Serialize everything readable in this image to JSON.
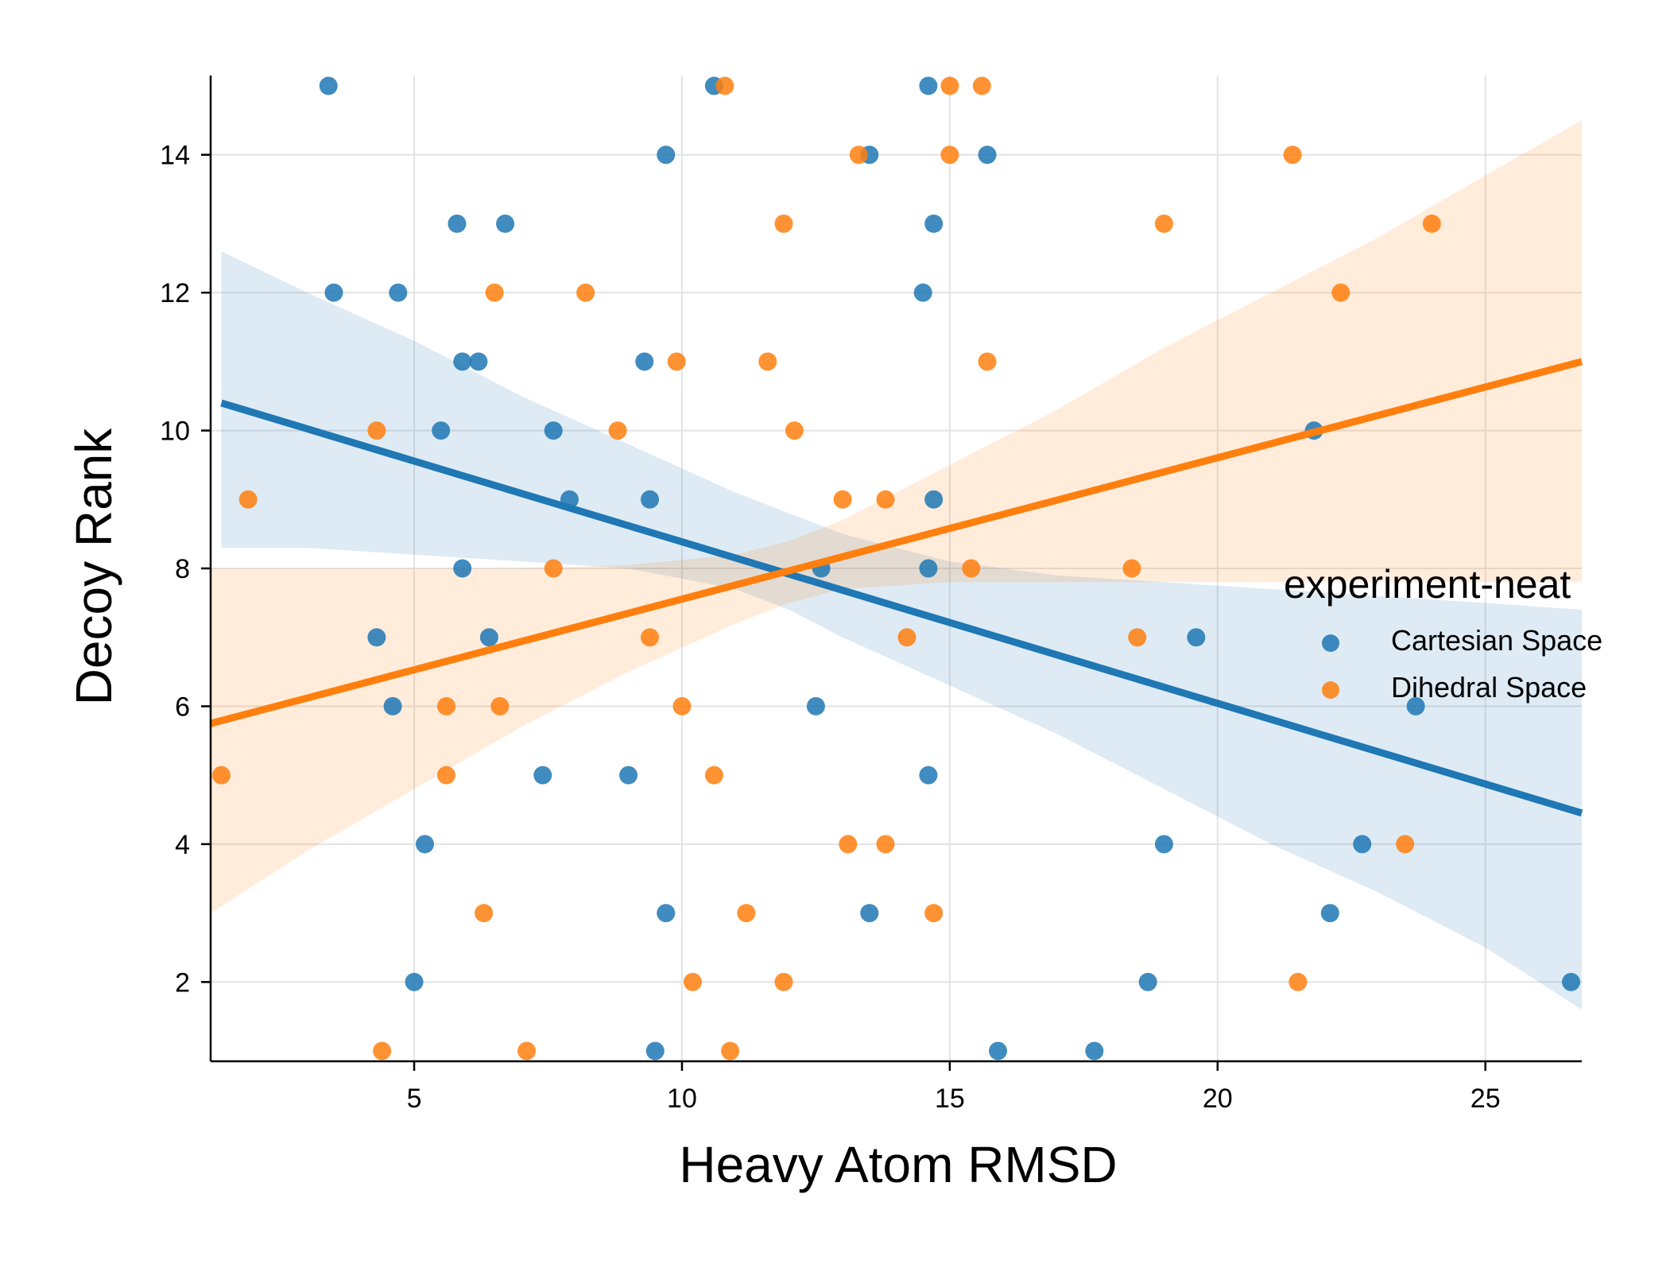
{
  "chart_data": {
    "type": "scatter",
    "title": "",
    "xlabel": "Heavy Atom RMSD",
    "ylabel": "Decoy Rank",
    "xlim": [
      1.2,
      26.8
    ],
    "ylim": [
      0.85,
      15.15
    ],
    "xticks": [
      5,
      10,
      15,
      20,
      25
    ],
    "yticks": [
      2,
      4,
      6,
      8,
      10,
      12,
      14
    ],
    "grid": true,
    "legend": {
      "title": "experiment-neat",
      "position": "right"
    },
    "series": [
      {
        "name": "Cartesian Space",
        "color": "#1f77b4",
        "points": [
          [
            3.4,
            15
          ],
          [
            10.6,
            15
          ],
          [
            14.6,
            15
          ],
          [
            9.7,
            14
          ],
          [
            13.5,
            14
          ],
          [
            15.7,
            14
          ],
          [
            5.8,
            13
          ],
          [
            6.7,
            13
          ],
          [
            14.7,
            13
          ],
          [
            3.5,
            12
          ],
          [
            4.7,
            12
          ],
          [
            14.5,
            12
          ],
          [
            5.9,
            11
          ],
          [
            6.2,
            11
          ],
          [
            9.3,
            11
          ],
          [
            5.5,
            10
          ],
          [
            7.6,
            10
          ],
          [
            21.8,
            10
          ],
          [
            7.9,
            9
          ],
          [
            9.4,
            9
          ],
          [
            14.7,
            9
          ],
          [
            5.9,
            8
          ],
          [
            12.6,
            8
          ],
          [
            14.6,
            8
          ],
          [
            4.3,
            7
          ],
          [
            6.4,
            7
          ],
          [
            19.6,
            7
          ],
          [
            4.6,
            6
          ],
          [
            12.5,
            6
          ],
          [
            23.7,
            6
          ],
          [
            7.4,
            5
          ],
          [
            9.0,
            5
          ],
          [
            14.6,
            5
          ],
          [
            5.2,
            4
          ],
          [
            19.0,
            4
          ],
          [
            22.7,
            4
          ],
          [
            9.7,
            3
          ],
          [
            13.5,
            3
          ],
          [
            22.1,
            3
          ],
          [
            5.0,
            2
          ],
          [
            18.7,
            2
          ],
          [
            26.6,
            2
          ],
          [
            9.5,
            1
          ],
          [
            15.9,
            1
          ],
          [
            17.7,
            1
          ]
        ],
        "regression": {
          "x": [
            1.4,
            26.8
          ],
          "y": [
            10.4,
            4.45
          ]
        },
        "ci_band": {
          "x": [
            1.4,
            3,
            5,
            7,
            9,
            11,
            12,
            13,
            15,
            17,
            19,
            21,
            23,
            25,
            26.8
          ],
          "upper": [
            12.6,
            12.0,
            11.3,
            10.5,
            9.8,
            9.1,
            8.8,
            8.5,
            8.1,
            7.9,
            7.8,
            7.7,
            7.6,
            7.5,
            7.4
          ],
          "lower": [
            8.3,
            8.3,
            8.2,
            8.1,
            8.0,
            7.7,
            7.4,
            7.0,
            6.3,
            5.6,
            4.8,
            4.0,
            3.3,
            2.5,
            1.6
          ]
        }
      },
      {
        "name": "Dihedral Space",
        "color": "#ff7f0e",
        "points": [
          [
            10.8,
            15
          ],
          [
            15.0,
            15
          ],
          [
            15.6,
            15
          ],
          [
            13.3,
            14
          ],
          [
            15.0,
            14
          ],
          [
            21.4,
            14
          ],
          [
            11.9,
            13
          ],
          [
            19.0,
            13
          ],
          [
            24.0,
            13
          ],
          [
            6.5,
            12
          ],
          [
            8.2,
            12
          ],
          [
            22.3,
            12
          ],
          [
            9.9,
            11
          ],
          [
            11.6,
            11
          ],
          [
            15.7,
            11
          ],
          [
            4.3,
            10
          ],
          [
            8.8,
            10
          ],
          [
            12.1,
            10
          ],
          [
            1.9,
            9
          ],
          [
            13.0,
            9
          ],
          [
            13.8,
            9
          ],
          [
            7.6,
            8
          ],
          [
            15.4,
            8
          ],
          [
            18.4,
            8
          ],
          [
            9.4,
            7
          ],
          [
            14.2,
            7
          ],
          [
            18.5,
            7
          ],
          [
            5.6,
            6
          ],
          [
            6.6,
            6
          ],
          [
            10.0,
            6
          ],
          [
            1.4,
            5
          ],
          [
            5.6,
            5
          ],
          [
            10.6,
            5
          ],
          [
            13.1,
            4
          ],
          [
            13.8,
            4
          ],
          [
            23.5,
            4
          ],
          [
            6.3,
            3
          ],
          [
            11.2,
            3
          ],
          [
            14.7,
            3
          ],
          [
            10.2,
            2
          ],
          [
            11.9,
            2
          ],
          [
            21.5,
            2
          ],
          [
            4.4,
            1
          ],
          [
            7.1,
            1
          ],
          [
            10.9,
            1
          ]
        ],
        "regression": {
          "x": [
            1.2,
            26.8
          ],
          "y": [
            5.75,
            11.0
          ]
        },
        "ci_band": {
          "x": [
            1.2,
            3,
            5,
            7,
            9,
            11,
            12,
            13,
            15,
            17,
            19,
            21,
            23,
            25,
            26.8
          ],
          "upper": [
            8.0,
            8.0,
            8.0,
            8.0,
            8.05,
            8.2,
            8.4,
            8.7,
            9.5,
            10.3,
            11.2,
            12.0,
            12.8,
            13.7,
            14.5
          ],
          "lower": [
            3.0,
            3.9,
            4.8,
            5.7,
            6.5,
            7.2,
            7.5,
            7.7,
            7.8,
            7.8,
            7.8,
            7.8,
            7.8,
            7.8,
            7.8
          ]
        }
      }
    ]
  }
}
